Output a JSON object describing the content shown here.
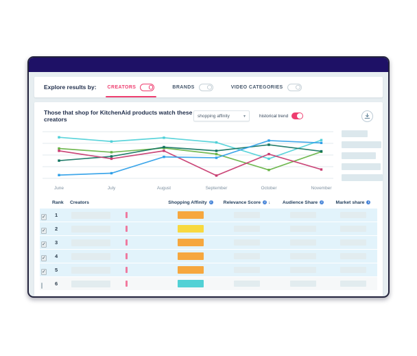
{
  "window": {
    "title": ""
  },
  "filters": {
    "label": "Explore results by:",
    "tabs": [
      {
        "label": "CREATORS",
        "active": true
      },
      {
        "label": "BRANDS",
        "active": false
      },
      {
        "label": "VIDEO CATEGORIES",
        "active": false
      }
    ]
  },
  "toolbar": {
    "subtitle": "Those that shop for KitchenAid products watch these creators",
    "metric_dropdown": {
      "value": "shopping affinity",
      "caret": "▾"
    },
    "historical_trend": {
      "label": "historical trend",
      "on": true
    }
  },
  "chart_data": {
    "type": "line",
    "x": [
      "June",
      "July",
      "August",
      "September",
      "October",
      "November"
    ],
    "series": [
      {
        "name": "creator-1 (label redacted)",
        "color": "#4ed0d8",
        "values": [
          88,
          79,
          87,
          77,
          42,
          82
        ]
      },
      {
        "name": "creator-2 (label redacted)",
        "color": "#67b345",
        "values": [
          64,
          56,
          65,
          52,
          18,
          57
        ]
      },
      {
        "name": "creator-3 (label redacted)",
        "color": "#11735f",
        "values": [
          38,
          47,
          67,
          59,
          72,
          58
        ]
      },
      {
        "name": "creator-4 (label redacted)",
        "color": "#c73a6f",
        "values": [
          59,
          42,
          59,
          6,
          52,
          19
        ]
      },
      {
        "name": "creator-5 (label redacted)",
        "color": "#2f9fe8",
        "values": [
          7,
          11,
          46,
          44,
          81,
          76
        ]
      }
    ],
    "ylim": [
      0,
      100
    ],
    "grid": true,
    "gridline_count": 5,
    "legend_position": "right",
    "legend_redacted": true,
    "legend_item_count": 5
  },
  "table": {
    "check_glyph": "✓",
    "sort_indicator": "↓",
    "columns": [
      {
        "label": "Rank",
        "info": false
      },
      {
        "label": "Creators",
        "info": false
      },
      {
        "label": "Shopping Affinity",
        "info": true
      },
      {
        "label": "Relevance Score",
        "info": true,
        "sorted": "desc"
      },
      {
        "label": "Audience Share",
        "info": true
      },
      {
        "label": "Market share",
        "info": true
      }
    ],
    "rows": [
      {
        "rank": "1",
        "checked": true,
        "selected": true,
        "affinity_color": "#f6a73e"
      },
      {
        "rank": "2",
        "checked": true,
        "selected": true,
        "affinity_color": "#f8d93f"
      },
      {
        "rank": "3",
        "checked": true,
        "selected": true,
        "affinity_color": "#f6a73e"
      },
      {
        "rank": "4",
        "checked": true,
        "selected": true,
        "affinity_color": "#f6a73e"
      },
      {
        "rank": "5",
        "checked": true,
        "selected": true,
        "affinity_color": "#f6a73e"
      },
      {
        "rank": "6",
        "checked": false,
        "selected": false,
        "affinity_color": "#52d1d5"
      }
    ]
  },
  "colors": {
    "titlebar": "#1e1166",
    "accent_pink": "#ee3d6f",
    "selected_row_bg": "#e2f3fb",
    "window_bg": "#e7eef1",
    "placeholder": "#e2ecef"
  }
}
